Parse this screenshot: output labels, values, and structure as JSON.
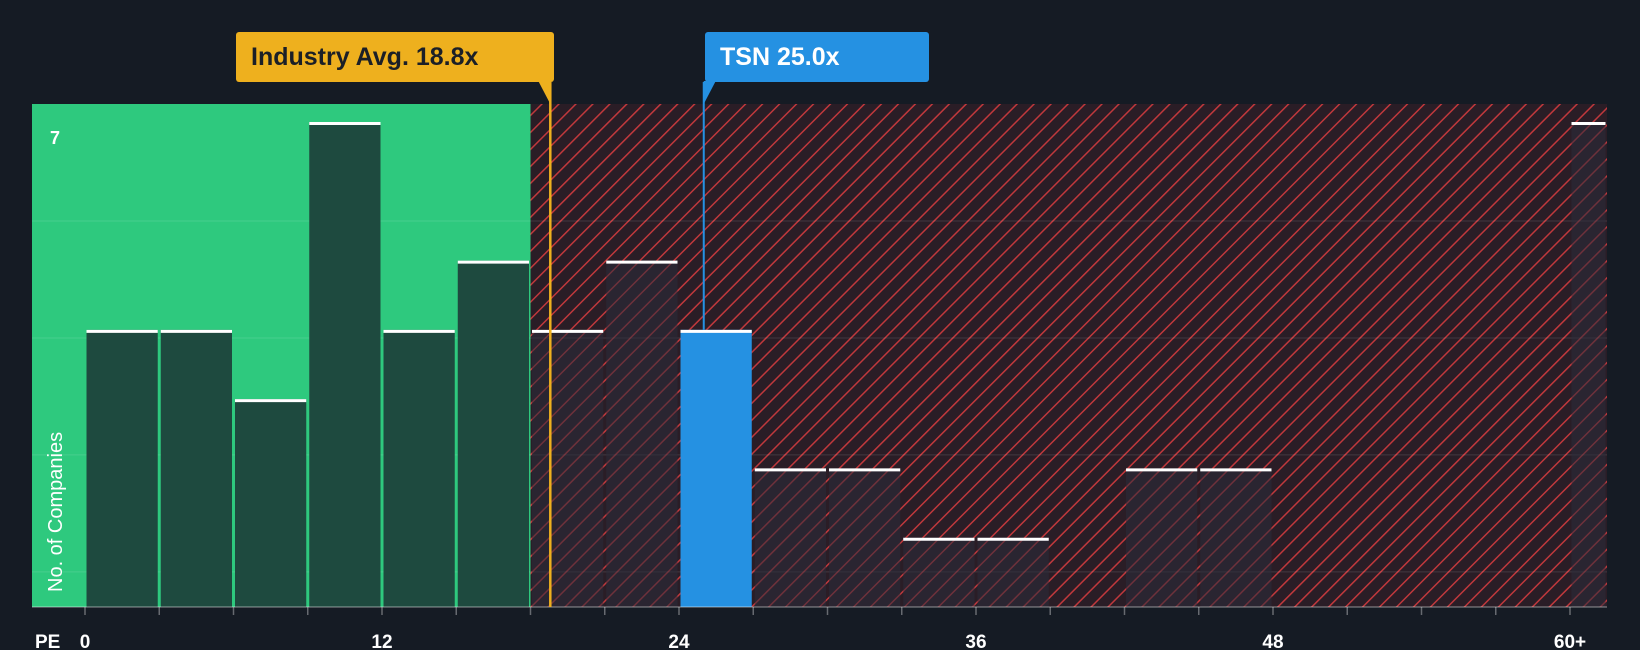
{
  "chart_data": {
    "type": "bar",
    "xlabel": "PE",
    "ylabel": "No. of Companies",
    "xlim": [
      0,
      61
    ],
    "ylim": [
      0,
      7
    ],
    "y_ticks": [
      7
    ],
    "x_ticks": [
      "0",
      "12",
      "24",
      "36",
      "48",
      "60+"
    ],
    "bin_width": 3,
    "series": [
      {
        "values": [
          {
            "x0": 0,
            "x1": 3,
            "count": 4
          },
          {
            "x0": 3,
            "x1": 6,
            "count": 4
          },
          {
            "x0": 6,
            "x1": 9,
            "count": 3
          },
          {
            "x0": 9,
            "x1": 12,
            "count": 7
          },
          {
            "x0": 12,
            "x1": 15,
            "count": 4
          },
          {
            "x0": 15,
            "x1": 18,
            "count": 5
          },
          {
            "x0": 18,
            "x1": 21,
            "count": 4
          },
          {
            "x0": 21,
            "x1": 24,
            "count": 5
          },
          {
            "x0": 24,
            "x1": 27,
            "count": 4
          },
          {
            "x0": 27,
            "x1": 30,
            "count": 2
          },
          {
            "x0": 30,
            "x1": 33,
            "count": 2
          },
          {
            "x0": 33,
            "x1": 36,
            "count": 1
          },
          {
            "x0": 36,
            "x1": 39,
            "count": 1
          },
          {
            "x0": 42,
            "x1": 45,
            "count": 2
          },
          {
            "x0": 45,
            "x1": 48,
            "count": 2
          },
          {
            "x0": 60,
            "x1": 61.6,
            "count": 7
          }
        ]
      }
    ],
    "fair_zone_upper": 18,
    "industry_avg": {
      "label": "Industry Avg. 18.8x",
      "value": 18.8
    },
    "company": {
      "label": "TSN 25.0x",
      "value": 25.0
    },
    "colors": {
      "background": "#151b24",
      "fair_zone": "#2ec97e",
      "bar_in_fair_zone": "#1e4a3f",
      "bar_overvalued": "#2a2b3a",
      "hatch": "#c0383c",
      "company_bar": "#2591e2",
      "industry_line": "#eeb01e"
    }
  }
}
